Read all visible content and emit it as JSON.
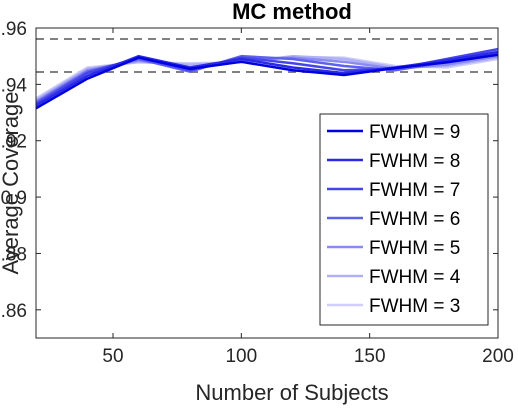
{
  "chart_data": {
    "type": "line",
    "title": "MC method",
    "xlabel": "Number of Subjects",
    "ylabel": "Average Coverage",
    "xlim": [
      20,
      200
    ],
    "ylim": [
      0.85,
      0.96
    ],
    "xticks": [
      50,
      100,
      150,
      200
    ],
    "yticks": [
      0.86,
      0.88,
      0.9,
      0.92,
      0.94,
      0.96
    ],
    "ytick_labels": [
      "0.86",
      "0.88",
      "0.9",
      "0.92",
      "0.94",
      "0.96"
    ],
    "grid": false,
    "legend_position": "bottom-right",
    "reference_lines": [
      0.9444,
      0.9561
    ],
    "reference_line_color": "#808080",
    "x": [
      20,
      40,
      60,
      80,
      100,
      120,
      140,
      160,
      180,
      200
    ],
    "series": [
      {
        "name": "FWHM = 9",
        "color": "#0000e0",
        "values": [
          0.9315,
          0.942,
          0.9495,
          0.9455,
          0.948,
          0.945,
          0.9433,
          0.9458,
          0.9478,
          0.9505
        ]
      },
      {
        "name": "FWHM = 8",
        "color": "#2a2ae6",
        "values": [
          0.9325,
          0.943,
          0.95,
          0.946,
          0.949,
          0.946,
          0.944,
          0.946,
          0.9485,
          0.9515
        ]
      },
      {
        "name": "FWHM = 7",
        "color": "#4545ea",
        "values": [
          0.933,
          0.944,
          0.9495,
          0.945,
          0.9495,
          0.9475,
          0.945,
          0.9455,
          0.949,
          0.9525
        ]
      },
      {
        "name": "FWHM = 6",
        "color": "#6060ee",
        "values": [
          0.9335,
          0.9445,
          0.949,
          0.9445,
          0.95,
          0.949,
          0.9465,
          0.945,
          0.948,
          0.951
        ]
      },
      {
        "name": "FWHM = 5",
        "color": "#8a8af2",
        "values": [
          0.934,
          0.945,
          0.9485,
          0.946,
          0.9485,
          0.9495,
          0.948,
          0.9455,
          0.947,
          0.95
        ]
      },
      {
        "name": "FWHM = 4",
        "color": "#b0b0f6",
        "values": [
          0.9345,
          0.9455,
          0.948,
          0.947,
          0.948,
          0.95,
          0.949,
          0.946,
          0.9465,
          0.9495
        ]
      },
      {
        "name": "FWHM = 3",
        "color": "#cfcffa",
        "values": [
          0.935,
          0.946,
          0.9478,
          0.9475,
          0.9478,
          0.9498,
          0.9495,
          0.9465,
          0.946,
          0.949
        ]
      }
    ]
  }
}
